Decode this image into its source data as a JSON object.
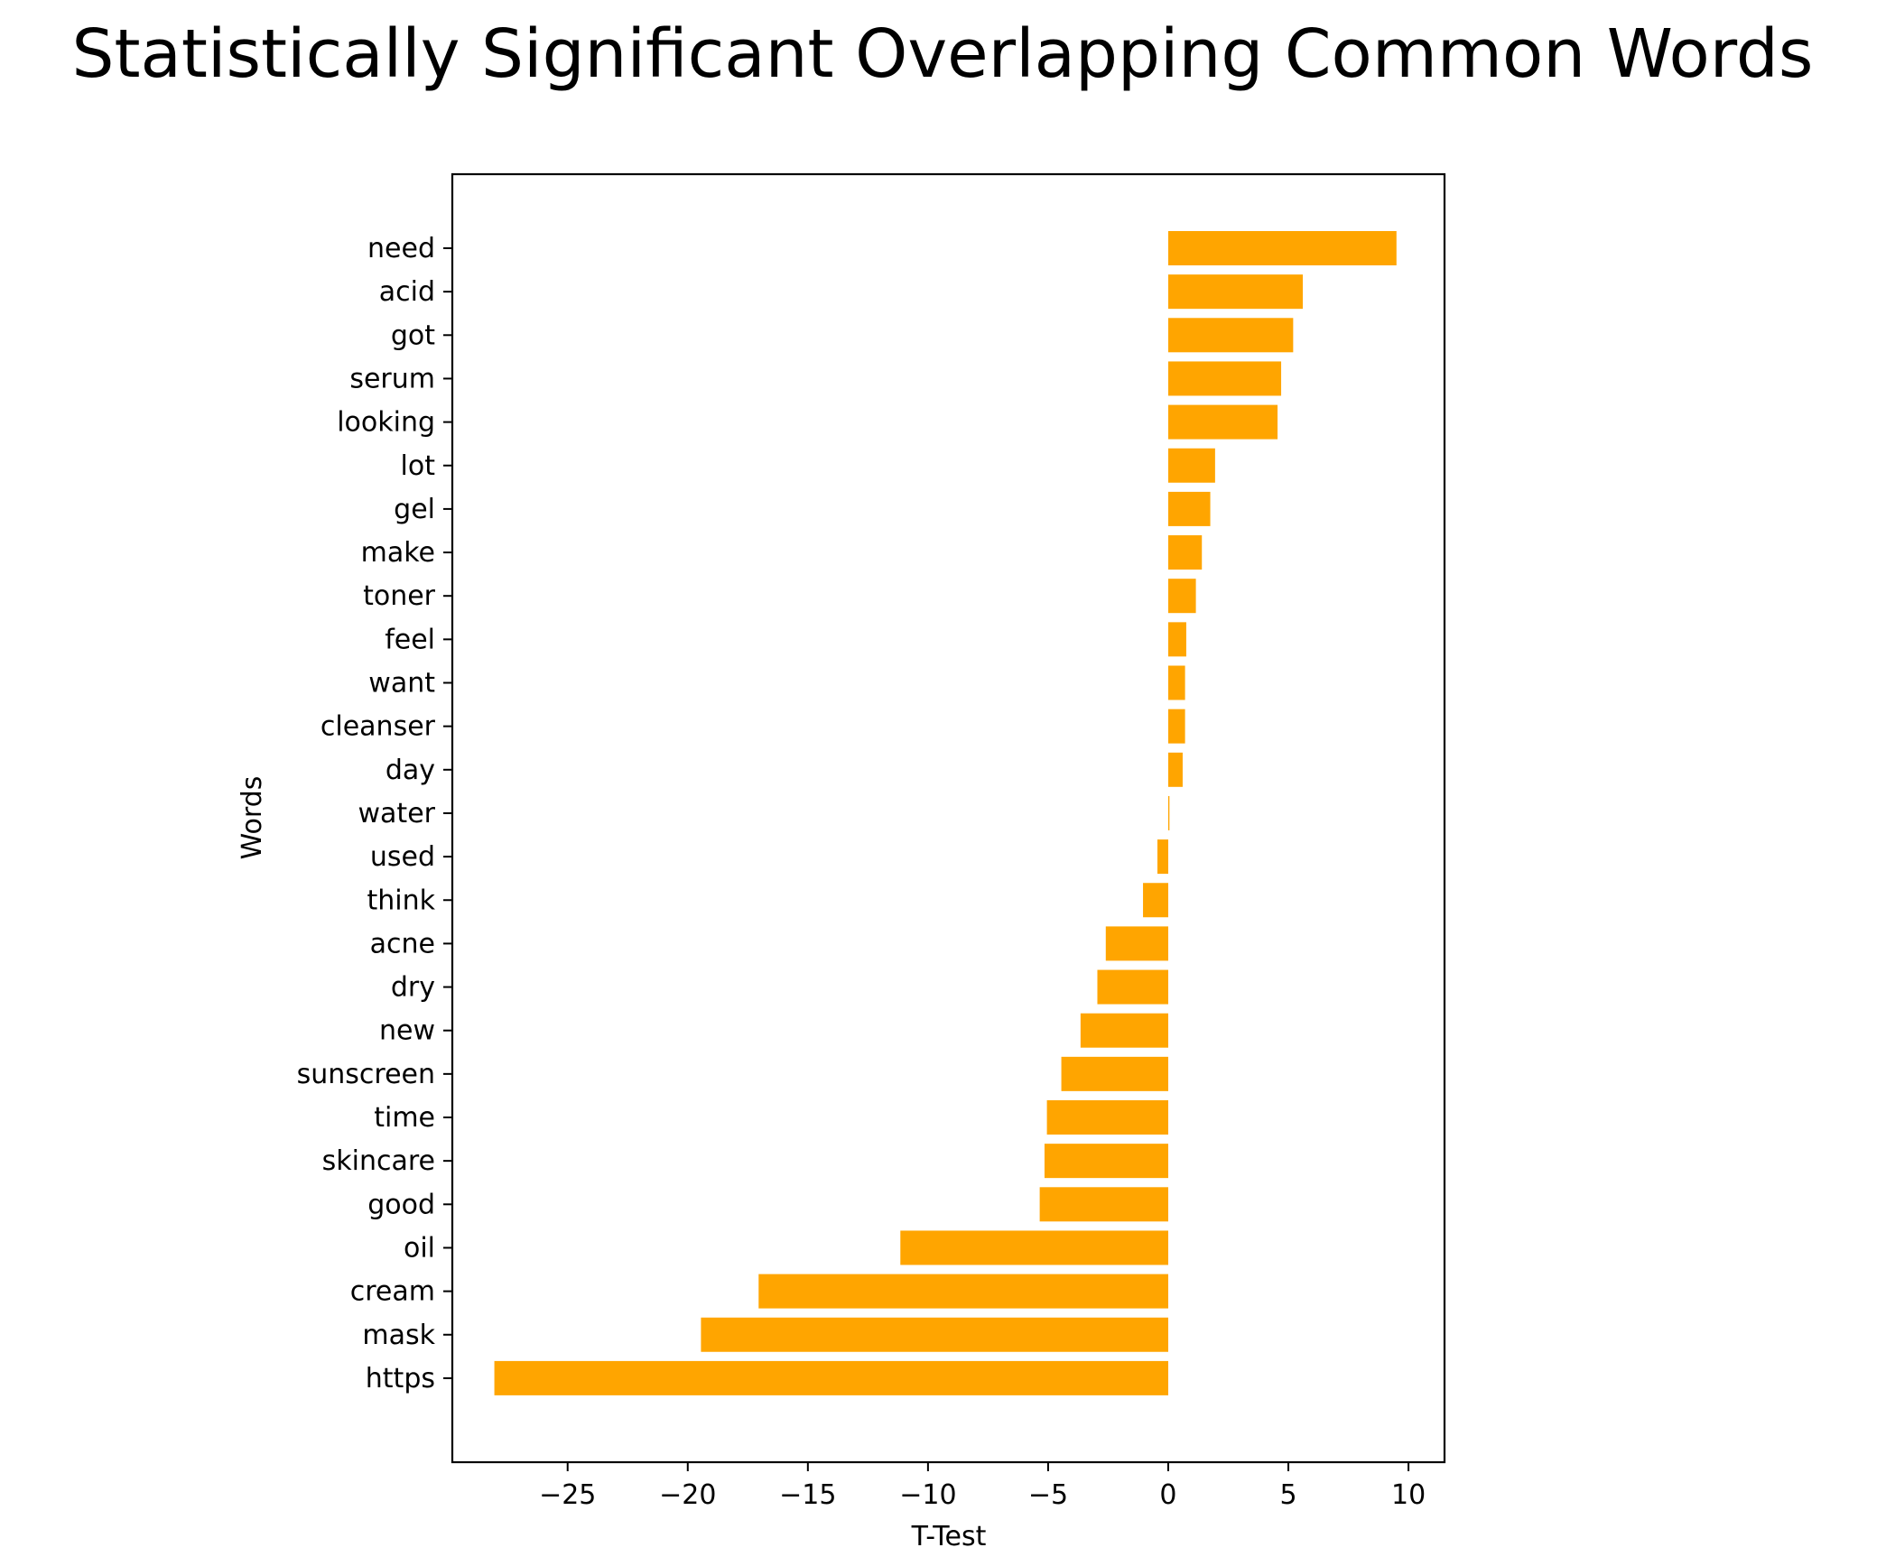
{
  "chart_data": {
    "type": "bar",
    "orientation": "horizontal",
    "title": "Statistically Significant Overlapping Common Words",
    "xlabel": "T-Test",
    "ylabel": "Words",
    "bar_color": "#ffa500",
    "xlim": [
      -29.8,
      11.5
    ],
    "xticks": [
      -25,
      -20,
      -15,
      -10,
      -5,
      0,
      5,
      10
    ],
    "xtick_labels": [
      "−25",
      "−20",
      "−15",
      "−10",
      "−5",
      "0",
      "5",
      "10"
    ],
    "grid": false,
    "categories": [
      "need",
      "acid",
      "got",
      "serum",
      "looking",
      "lot",
      "gel",
      "make",
      "toner",
      "feel",
      "want",
      "cleanser",
      "day",
      "water",
      "used",
      "think",
      "acne",
      "dry",
      "new",
      "sunscreen",
      "time",
      "skincare",
      "good",
      "oil",
      "cream",
      "mask",
      "https"
    ],
    "values": [
      9.5,
      5.6,
      5.2,
      4.7,
      4.55,
      1.95,
      1.75,
      1.4,
      1.15,
      0.75,
      0.7,
      0.7,
      0.6,
      0.05,
      -0.45,
      -1.05,
      -2.6,
      -2.95,
      -3.65,
      -4.45,
      -5.05,
      -5.15,
      -5.35,
      -11.15,
      -17.05,
      -19.45,
      -28.05
    ]
  }
}
